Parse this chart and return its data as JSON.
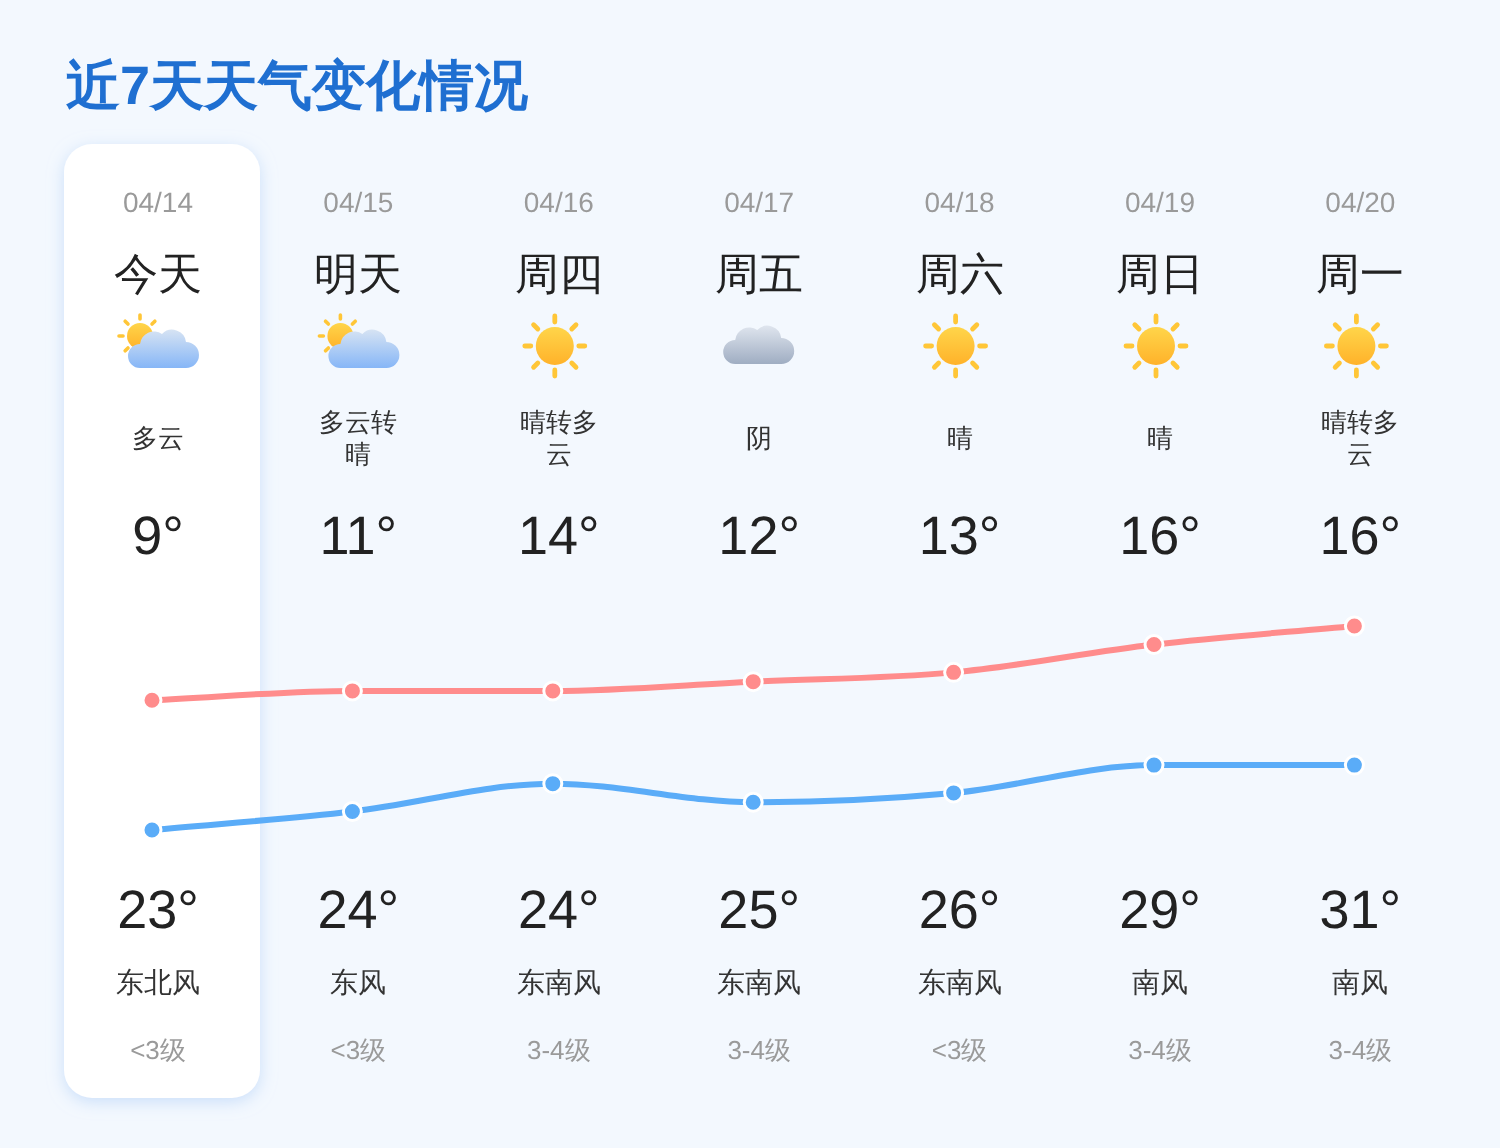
{
  "chart_data": {
    "type": "line",
    "title": "近7天天气变化情况",
    "categories": [
      "04/14",
      "04/15",
      "04/16",
      "04/17",
      "04/18",
      "04/19",
      "04/20"
    ],
    "annotations": [
      "今天",
      "明天",
      "周四",
      "周五",
      "周六",
      "周日",
      "周一",
      "多云",
      "多云转晴",
      "晴转多云",
      "阴",
      "晴",
      "晴",
      "晴转多云",
      "东北风",
      "东风",
      "东南风",
      "东南风",
      "东南风",
      "南风",
      "南风",
      "<3级",
      "<3级",
      "3-4级",
      "3-4级",
      "<3级",
      "3-4级",
      "3-4级"
    ],
    "series": [
      {
        "color": "#5aacf8",
        "values": [
          9,
          11,
          14,
          12,
          13,
          16,
          16
        ],
        "value_labels": [
          "9°",
          "11°",
          "14°",
          "12°",
          "13°",
          "16°",
          "16°"
        ]
      },
      {
        "color": "#ff8c8c",
        "values": [
          23,
          24,
          24,
          25,
          26,
          29,
          31
        ],
        "value_labels": [
          "23°",
          "24°",
          "24°",
          "25°",
          "26°",
          "29°",
          "31°"
        ]
      }
    ],
    "marker": "circle",
    "bands": [
      {
        "axis": "x",
        "from": "04/14",
        "to": "04/14",
        "color": "#ffffff"
      }
    ]
  }
}
